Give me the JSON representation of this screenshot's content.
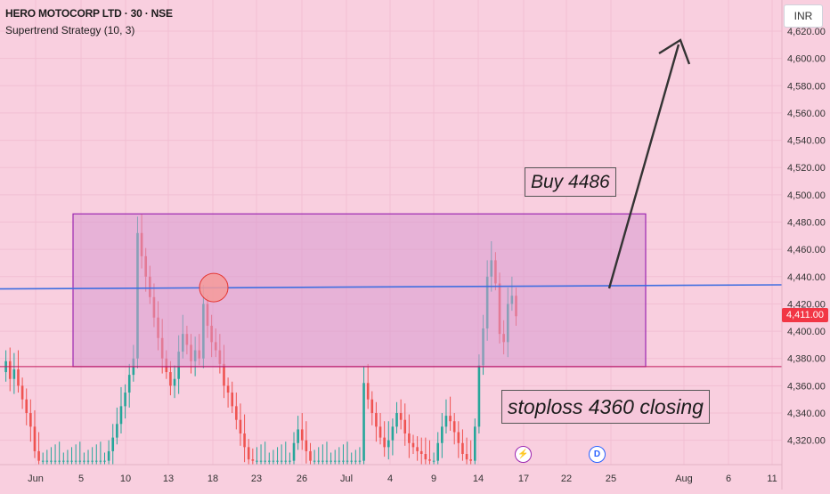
{
  "header": {
    "title": "HERO MOTOCORP LTD · 30 · NSE",
    "strategy": "Supertrend Strategy (10, 3)"
  },
  "currency_button": "INR",
  "current_price_label": "4,411.00",
  "annotations": {
    "buy_label": "Buy 4486",
    "stoploss_label": "stoploss 4360 closing"
  },
  "event_markers": {
    "dividend_label": "D",
    "earnings_icon": "bolt-icon"
  },
  "colors": {
    "background": "#f9cfdf",
    "box_fill": "#d89ad0",
    "box_border": "#9c27b0",
    "trend_line": "#3f6ee0",
    "support_line": "#c2185b",
    "candle_up": "#26a69a",
    "candle_down": "#ef5350",
    "price_tag": "#f23645",
    "arrow": "#333333"
  },
  "chart_data": {
    "type": "candlestick",
    "symbol": "HERO MOTOCORP LTD",
    "interval": "30",
    "exchange": "NSE",
    "y_axis": {
      "side": "right",
      "ylim": [
        4300,
        4632
      ],
      "ticks": [
        4320,
        4340,
        4360,
        4380,
        4400,
        4420,
        4440,
        4460,
        4480,
        4500,
        4520,
        4540,
        4560,
        4580,
        4600,
        4620
      ],
      "tick_labels": [
        "4,320.00",
        "4,340.00",
        "4,360.00",
        "4,380.00",
        "4,400.00",
        "4,420.00",
        "4,440.00",
        "4,460.00",
        "4,480.00",
        "4,500.00",
        "4,520.00",
        "4,540.00",
        "4,560.00",
        "4,580.00",
        "4,600.00",
        "4,620.00"
      ]
    },
    "x_axis": {
      "tick_labels": [
        "Jun",
        "5",
        "10",
        "13",
        "18",
        "23",
        "26",
        "Jul",
        "4",
        "9",
        "14",
        "17",
        "22",
        "25",
        "Aug",
        "6",
        "11"
      ]
    },
    "last_price": 4411,
    "range_box": {
      "top": 4486,
      "bottom": 4374
    },
    "support_line": 4374,
    "trend_line": {
      "start": 4431,
      "end": 4434
    },
    "price_path": [
      [
        0,
        4370
      ],
      [
        1,
        4378
      ],
      [
        2,
        4365
      ],
      [
        3,
        4372
      ],
      [
        4,
        4360
      ],
      [
        5,
        4350
      ],
      [
        6,
        4340
      ],
      [
        7,
        4330
      ],
      [
        8,
        4312
      ],
      [
        9,
        4305
      ],
      [
        10,
        4305
      ],
      [
        11,
        4305
      ],
      [
        12,
        4305
      ],
      [
        13,
        4305
      ],
      [
        14,
        4305
      ],
      [
        15,
        4305
      ],
      [
        16,
        4305
      ],
      [
        17,
        4305
      ],
      [
        18,
        4305
      ],
      [
        19,
        4305
      ],
      [
        20,
        4305
      ],
      [
        21,
        4305
      ],
      [
        22,
        4305
      ],
      [
        23,
        4305
      ],
      [
        24,
        4305
      ],
      [
        25,
        4305
      ],
      [
        26,
        4312
      ],
      [
        27,
        4322
      ],
      [
        28,
        4332
      ],
      [
        29,
        4345
      ],
      [
        30,
        4355
      ],
      [
        31,
        4368
      ],
      [
        32,
        4380
      ],
      [
        33,
        4472
      ],
      [
        34,
        4455
      ],
      [
        35,
        4440
      ],
      [
        36,
        4425
      ],
      [
        37,
        4410
      ],
      [
        38,
        4395
      ],
      [
        39,
        4380
      ],
      [
        40,
        4370
      ],
      [
        41,
        4360
      ],
      [
        42,
        4365
      ],
      [
        43,
        4385
      ],
      [
        44,
        4398
      ],
      [
        45,
        4390
      ],
      [
        46,
        4378
      ],
      [
        47,
        4386
      ],
      [
        48,
        4380
      ],
      [
        49,
        4420
      ],
      [
        50,
        4404
      ],
      [
        51,
        4392
      ],
      [
        52,
        4386
      ],
      [
        53,
        4376
      ],
      [
        54,
        4360
      ],
      [
        55,
        4355
      ],
      [
        56,
        4345
      ],
      [
        57,
        4335
      ],
      [
        58,
        4325
      ],
      [
        59,
        4315
      ],
      [
        60,
        4306
      ],
      [
        61,
        4305
      ],
      [
        62,
        4305
      ],
      [
        63,
        4305
      ],
      [
        64,
        4305
      ],
      [
        65,
        4305
      ],
      [
        66,
        4305
      ],
      [
        67,
        4305
      ],
      [
        68,
        4305
      ],
      [
        69,
        4305
      ],
      [
        70,
        4305
      ],
      [
        71,
        4318
      ],
      [
        72,
        4328
      ],
      [
        73,
        4320
      ],
      [
        74,
        4312
      ],
      [
        75,
        4305
      ],
      [
        76,
        4305
      ],
      [
        77,
        4305
      ],
      [
        78,
        4305
      ],
      [
        79,
        4305
      ],
      [
        80,
        4305
      ],
      [
        81,
        4305
      ],
      [
        82,
        4305
      ],
      [
        83,
        4305
      ],
      [
        84,
        4305
      ],
      [
        85,
        4305
      ],
      [
        86,
        4305
      ],
      [
        87,
        4305
      ],
      [
        88,
        4362
      ],
      [
        89,
        4350
      ],
      [
        90,
        4340
      ],
      [
        91,
        4330
      ],
      [
        92,
        4322
      ],
      [
        93,
        4315
      ],
      [
        94,
        4320
      ],
      [
        95,
        4330
      ],
      [
        96,
        4340
      ],
      [
        97,
        4335
      ],
      [
        98,
        4325
      ],
      [
        99,
        4318
      ],
      [
        100,
        4315
      ],
      [
        101,
        4312
      ],
      [
        102,
        4310
      ],
      [
        103,
        4306
      ],
      [
        104,
        4305
      ],
      [
        105,
        4305
      ],
      [
        106,
        4318
      ],
      [
        107,
        4330
      ],
      [
        108,
        4338
      ],
      [
        109,
        4334
      ],
      [
        110,
        4326
      ],
      [
        111,
        4318
      ],
      [
        112,
        4310
      ],
      [
        113,
        4306
      ],
      [
        114,
        4305
      ],
      [
        115,
        4330
      ],
      [
        116,
        4375
      ],
      [
        117,
        4402
      ],
      [
        118,
        4440
      ],
      [
        119,
        4452
      ],
      [
        120,
        4435
      ],
      [
        121,
        4398
      ],
      [
        122,
        4392
      ],
      [
        123,
        4420
      ],
      [
        124,
        4426
      ],
      [
        125,
        4411
      ]
    ]
  }
}
